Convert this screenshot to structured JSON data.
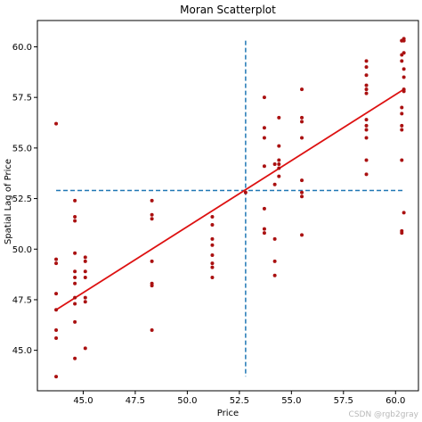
{
  "chart_data": {
    "type": "scatter",
    "title": "Moran Scatterplot",
    "xlabel": "Price",
    "ylabel": "Spatial Lag of Price",
    "xlim": [
      42.8,
      61.1
    ],
    "ylim": [
      43.0,
      61.3
    ],
    "xticks": [
      45.0,
      47.5,
      50.0,
      52.5,
      55.0,
      57.5,
      60.0
    ],
    "xtick_labels": [
      "45.0",
      "47.5",
      "50.0",
      "52.5",
      "55.0",
      "57.5",
      "60.0"
    ],
    "yticks": [
      45.0,
      47.5,
      50.0,
      52.5,
      55.0,
      57.5,
      60.0
    ],
    "ytick_labels": [
      "45.0",
      "47.5",
      "50.0",
      "52.5",
      "55.0",
      "57.5",
      "60.0"
    ],
    "grid": false,
    "point_color": "#aa1111",
    "fit_line_color": "#dd1111",
    "reference_line_color": "#1f77b4",
    "mean_x": 52.8,
    "mean_y": 52.9,
    "fit_line": {
      "x": [
        43.7,
        60.4
      ],
      "y": [
        47.0,
        57.9
      ]
    },
    "points": [
      {
        "x": 43.7,
        "y": 56.2
      },
      {
        "x": 43.7,
        "y": 49.5
      },
      {
        "x": 43.7,
        "y": 49.3
      },
      {
        "x": 43.7,
        "y": 47.8
      },
      {
        "x": 43.7,
        "y": 47.0
      },
      {
        "x": 43.7,
        "y": 46.0
      },
      {
        "x": 43.7,
        "y": 45.6
      },
      {
        "x": 43.7,
        "y": 43.7
      },
      {
        "x": 44.6,
        "y": 52.4
      },
      {
        "x": 44.6,
        "y": 51.6
      },
      {
        "x": 44.6,
        "y": 51.4
      },
      {
        "x": 44.6,
        "y": 49.8
      },
      {
        "x": 44.6,
        "y": 48.9
      },
      {
        "x": 44.6,
        "y": 48.6
      },
      {
        "x": 44.6,
        "y": 48.3
      },
      {
        "x": 44.6,
        "y": 47.6
      },
      {
        "x": 44.6,
        "y": 47.3
      },
      {
        "x": 44.6,
        "y": 46.4
      },
      {
        "x": 44.6,
        "y": 44.6
      },
      {
        "x": 45.1,
        "y": 49.6
      },
      {
        "x": 45.1,
        "y": 49.4
      },
      {
        "x": 45.1,
        "y": 48.9
      },
      {
        "x": 45.1,
        "y": 48.6
      },
      {
        "x": 45.1,
        "y": 47.6
      },
      {
        "x": 45.1,
        "y": 47.4
      },
      {
        "x": 45.1,
        "y": 45.1
      },
      {
        "x": 48.3,
        "y": 52.4
      },
      {
        "x": 48.3,
        "y": 51.7
      },
      {
        "x": 48.3,
        "y": 51.5
      },
      {
        "x": 48.3,
        "y": 49.4
      },
      {
        "x": 48.3,
        "y": 48.3
      },
      {
        "x": 48.3,
        "y": 48.2
      },
      {
        "x": 48.3,
        "y": 46.0
      },
      {
        "x": 51.2,
        "y": 51.6
      },
      {
        "x": 51.2,
        "y": 51.2
      },
      {
        "x": 51.2,
        "y": 50.5
      },
      {
        "x": 51.2,
        "y": 50.2
      },
      {
        "x": 51.2,
        "y": 49.7
      },
      {
        "x": 51.2,
        "y": 49.3
      },
      {
        "x": 51.2,
        "y": 49.1
      },
      {
        "x": 51.2,
        "y": 48.6
      },
      {
        "x": 52.8,
        "y": 52.8
      },
      {
        "x": 53.7,
        "y": 57.5
      },
      {
        "x": 53.7,
        "y": 56.0
      },
      {
        "x": 53.7,
        "y": 55.5
      },
      {
        "x": 53.7,
        "y": 54.1
      },
      {
        "x": 53.7,
        "y": 52.0
      },
      {
        "x": 53.7,
        "y": 51.0
      },
      {
        "x": 53.7,
        "y": 50.8
      },
      {
        "x": 54.2,
        "y": 54.2
      },
      {
        "x": 54.2,
        "y": 53.2
      },
      {
        "x": 54.2,
        "y": 50.5
      },
      {
        "x": 54.2,
        "y": 49.4
      },
      {
        "x": 54.2,
        "y": 48.7
      },
      {
        "x": 54.4,
        "y": 56.5
      },
      {
        "x": 54.4,
        "y": 55.1
      },
      {
        "x": 54.4,
        "y": 54.4
      },
      {
        "x": 54.4,
        "y": 54.2
      },
      {
        "x": 54.4,
        "y": 54.0
      },
      {
        "x": 54.4,
        "y": 53.6
      },
      {
        "x": 55.5,
        "y": 57.9
      },
      {
        "x": 55.5,
        "y": 56.5
      },
      {
        "x": 55.5,
        "y": 56.3
      },
      {
        "x": 55.5,
        "y": 55.5
      },
      {
        "x": 55.5,
        "y": 53.4
      },
      {
        "x": 55.5,
        "y": 52.8
      },
      {
        "x": 55.5,
        "y": 52.6
      },
      {
        "x": 55.5,
        "y": 50.7
      },
      {
        "x": 58.6,
        "y": 59.3
      },
      {
        "x": 58.6,
        "y": 59.0
      },
      {
        "x": 58.6,
        "y": 58.6
      },
      {
        "x": 58.6,
        "y": 58.1
      },
      {
        "x": 58.6,
        "y": 57.9
      },
      {
        "x": 58.6,
        "y": 57.7
      },
      {
        "x": 58.6,
        "y": 56.4
      },
      {
        "x": 58.6,
        "y": 56.1
      },
      {
        "x": 58.6,
        "y": 55.9
      },
      {
        "x": 58.6,
        "y": 55.5
      },
      {
        "x": 58.6,
        "y": 54.4
      },
      {
        "x": 58.6,
        "y": 53.7
      },
      {
        "x": 60.3,
        "y": 60.3
      },
      {
        "x": 60.3,
        "y": 60.3
      },
      {
        "x": 60.3,
        "y": 59.6
      },
      {
        "x": 60.3,
        "y": 59.3
      },
      {
        "x": 60.3,
        "y": 57.0
      },
      {
        "x": 60.3,
        "y": 56.7
      },
      {
        "x": 60.3,
        "y": 56.1
      },
      {
        "x": 60.3,
        "y": 55.9
      },
      {
        "x": 60.3,
        "y": 54.4
      },
      {
        "x": 60.3,
        "y": 50.9
      },
      {
        "x": 60.3,
        "y": 50.8
      },
      {
        "x": 60.4,
        "y": 60.4
      },
      {
        "x": 60.4,
        "y": 60.3
      },
      {
        "x": 60.4,
        "y": 59.7
      },
      {
        "x": 60.4,
        "y": 58.9
      },
      {
        "x": 60.4,
        "y": 58.5
      },
      {
        "x": 60.4,
        "y": 57.9
      },
      {
        "x": 60.4,
        "y": 57.8
      },
      {
        "x": 60.4,
        "y": 51.8
      }
    ]
  },
  "watermark": "CSDN @rgb2gray"
}
